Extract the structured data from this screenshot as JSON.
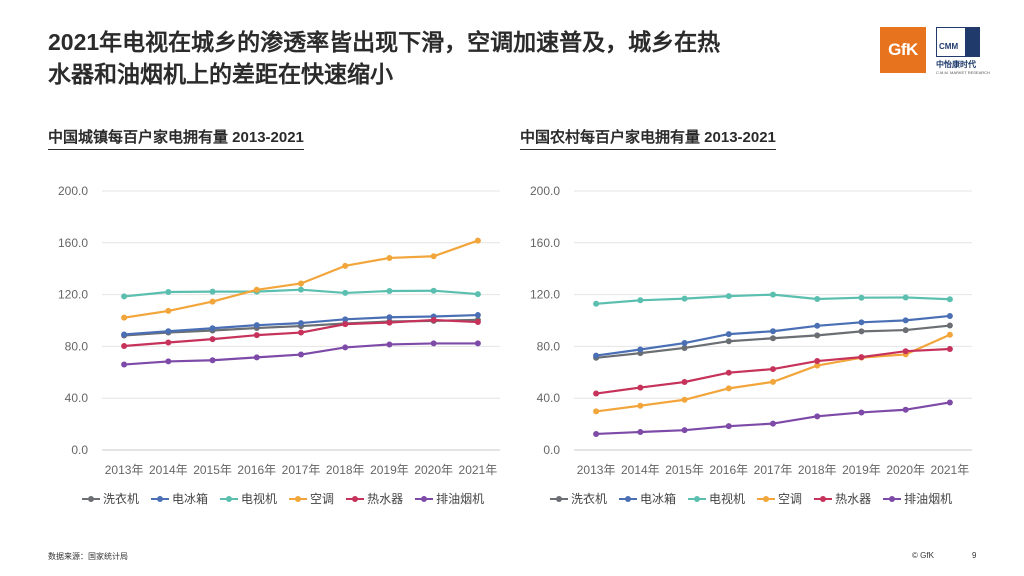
{
  "headline": {
    "line1": "2021年电视在城乡的渗透率皆出现下滑，空调加速普及，城乡在热",
    "line2": "水器和油烟机上的差距在快速缩小"
  },
  "logos": {
    "gfk": "GfK",
    "cmm_short": "CMM",
    "cmm_name": "中怡康时代",
    "cmm_sub": "C.M.M. MARKET RESEARCH"
  },
  "footer": {
    "source": "数据来源：国家统计局",
    "copyright": "© GfK",
    "page": "9"
  },
  "chart_data": [
    {
      "type": "line",
      "title": "中国城镇每百户家电拥有量 2013-2021",
      "categories": [
        "2013年",
        "2014年",
        "2015年",
        "2016年",
        "2017年",
        "2018年",
        "2019年",
        "2020年",
        "2021年"
      ],
      "ylim": [
        0,
        200
      ],
      "yticks": [
        "0.0",
        "40.0",
        "80.0",
        "120.0",
        "160.0",
        "200.0"
      ],
      "grid": true,
      "legend": "bottom",
      "series": [
        {
          "name": "洗衣机",
          "color": "#6b6e72",
          "values": [
            88.4,
            90.7,
            92.3,
            94.2,
            95.7,
            97.7,
            99.2,
            99.7,
            100.5
          ]
        },
        {
          "name": "电冰箱",
          "color": "#4a6fb5",
          "values": [
            89.2,
            91.7,
            94.0,
            96.4,
            98.0,
            100.9,
            102.5,
            103.1,
            104.2
          ]
        },
        {
          "name": "电视机",
          "color": "#5bbfb0",
          "values": [
            118.6,
            122.0,
            122.3,
            122.3,
            123.8,
            121.3,
            122.8,
            123.0,
            120.4
          ]
        },
        {
          "name": "空调",
          "color": "#f2a53a",
          "values": [
            102.2,
            107.4,
            114.6,
            123.7,
            128.6,
            142.2,
            148.3,
            149.6,
            161.7
          ]
        },
        {
          "name": "热水器",
          "color": "#c6325a",
          "values": [
            80.3,
            83.0,
            85.6,
            88.7,
            90.7,
            97.2,
            98.4,
            100.4,
            98.8
          ]
        },
        {
          "name": "排油烟机",
          "color": "#7d4aa8",
          "values": [
            66.0,
            68.4,
            69.3,
            71.5,
            73.7,
            79.2,
            81.5,
            82.3,
            82.3
          ]
        }
      ]
    },
    {
      "type": "line",
      "title": "中国农村每百户家电拥有量 2013-2021",
      "categories": [
        "2013年",
        "2014年",
        "2015年",
        "2016年",
        "2017年",
        "2018年",
        "2019年",
        "2020年",
        "2021年"
      ],
      "ylim": [
        0,
        200
      ],
      "yticks": [
        "0.0",
        "40.0",
        "80.0",
        "120.0",
        "160.0",
        "200.0"
      ],
      "grid": true,
      "legend": "bottom",
      "series": [
        {
          "name": "洗衣机",
          "color": "#6b6e72",
          "values": [
            71.2,
            74.8,
            78.8,
            84.0,
            86.3,
            88.5,
            91.6,
            92.6,
            96.1
          ]
        },
        {
          "name": "电冰箱",
          "color": "#4a6fb5",
          "values": [
            72.9,
            77.6,
            82.6,
            89.5,
            91.7,
            95.9,
            98.6,
            100.1,
            103.5
          ]
        },
        {
          "name": "电视机",
          "color": "#5bbfb0",
          "values": [
            112.9,
            115.6,
            116.9,
            118.8,
            120.0,
            116.6,
            117.6,
            117.8,
            116.4
          ]
        },
        {
          "name": "空调",
          "color": "#f2a53a",
          "values": [
            29.8,
            34.2,
            38.8,
            47.6,
            52.6,
            65.2,
            71.3,
            73.8,
            89.0
          ]
        },
        {
          "name": "热水器",
          "color": "#c6325a",
          "values": [
            43.6,
            48.2,
            52.5,
            59.7,
            62.5,
            68.7,
            71.7,
            76.3,
            78.0
          ]
        },
        {
          "name": "排油烟机",
          "color": "#7d4aa8",
          "values": [
            12.4,
            13.9,
            15.3,
            18.4,
            20.4,
            26.0,
            29.0,
            31.1,
            36.7
          ]
        }
      ]
    }
  ]
}
